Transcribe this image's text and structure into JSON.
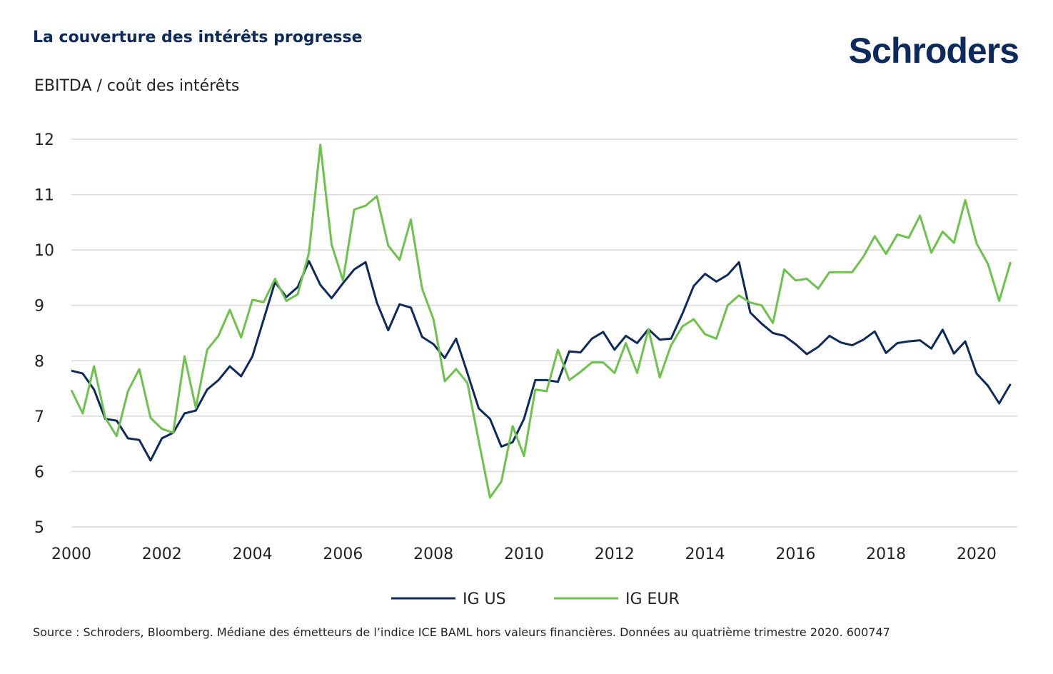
{
  "header": {
    "title": "La couverture des intérêts progresse",
    "logo": "Schroders",
    "subtitle": "EBITDA / coût des intérêts"
  },
  "footer": {
    "source": "Source : Schroders, Bloomberg. Médiane des émetteurs de l’indice ICE BAML hors valeurs financières. Données au quatrième trimestre 2020. 600747"
  },
  "colors": {
    "ig_us": "#0d2a5c",
    "ig_eur": "#6cc24a",
    "grid": "#d9d9d9"
  },
  "chart_data": {
    "type": "line",
    "title": "La couverture des intérêts progresse",
    "ylabel": "EBITDA / coût des intérêts",
    "ylim": [
      5,
      12
    ],
    "yticks": [
      "12",
      "11",
      "10",
      "9",
      "8",
      "7",
      "6",
      "5"
    ],
    "xlim": [
      2000,
      2020.9
    ],
    "xticks": [
      "2000",
      "2002",
      "2004",
      "2006",
      "2008",
      "2010",
      "2012",
      "2014",
      "2016",
      "2018",
      "2020"
    ],
    "grid": true,
    "legend": "bottom-center",
    "x_start": 2000,
    "x_step": 0.25,
    "series": [
      {
        "name": "IG US",
        "color": "#0d2a5c",
        "values": [
          7.82,
          7.77,
          7.48,
          6.95,
          6.92,
          6.6,
          6.57,
          6.2,
          6.6,
          6.7,
          7.05,
          7.1,
          7.48,
          7.65,
          7.9,
          7.72,
          8.08,
          8.75,
          9.42,
          9.15,
          9.33,
          9.8,
          9.37,
          9.13,
          9.4,
          9.65,
          9.78,
          9.05,
          8.55,
          9.02,
          8.96,
          8.43,
          8.3,
          8.05,
          8.4,
          7.78,
          7.14,
          6.95,
          6.45,
          6.53,
          6.95,
          7.65,
          7.65,
          7.62,
          8.17,
          8.15,
          8.4,
          8.52,
          8.2,
          8.45,
          8.32,
          8.57,
          8.38,
          8.4,
          8.85,
          9.35,
          9.57,
          9.43,
          9.55,
          9.78,
          8.87,
          8.67,
          8.5,
          8.45,
          8.3,
          8.12,
          8.25,
          8.45,
          8.33,
          8.28,
          8.38,
          8.53,
          8.14,
          8.32,
          8.35,
          8.37,
          8.22,
          8.56,
          8.13,
          8.35,
          7.77,
          7.55,
          7.23,
          7.58
        ]
      },
      {
        "name": "IG EUR",
        "color": "#6cc24a",
        "values": [
          7.47,
          7.05,
          7.9,
          6.97,
          6.64,
          7.45,
          7.85,
          6.97,
          6.77,
          6.7,
          8.08,
          7.15,
          8.2,
          8.45,
          8.92,
          8.42,
          9.1,
          9.06,
          9.48,
          9.08,
          9.2,
          9.95,
          11.9,
          10.1,
          9.45,
          10.73,
          10.8,
          10.97,
          10.08,
          9.82,
          10.55,
          9.3,
          8.75,
          7.63,
          7.85,
          7.6,
          6.55,
          5.53,
          5.82,
          6.82,
          6.28,
          7.48,
          7.45,
          8.2,
          7.65,
          7.8,
          7.97,
          7.97,
          7.78,
          8.32,
          7.78,
          8.57,
          7.7,
          8.28,
          8.62,
          8.75,
          8.48,
          8.4,
          9.0,
          9.18,
          9.05,
          9.0,
          8.68,
          9.65,
          9.45,
          9.48,
          9.3,
          9.6,
          9.6,
          9.6,
          9.88,
          10.25,
          9.93,
          10.28,
          10.22,
          10.62,
          9.95,
          10.33,
          10.13,
          10.9,
          10.12,
          9.75,
          9.08,
          9.78
        ]
      }
    ]
  }
}
